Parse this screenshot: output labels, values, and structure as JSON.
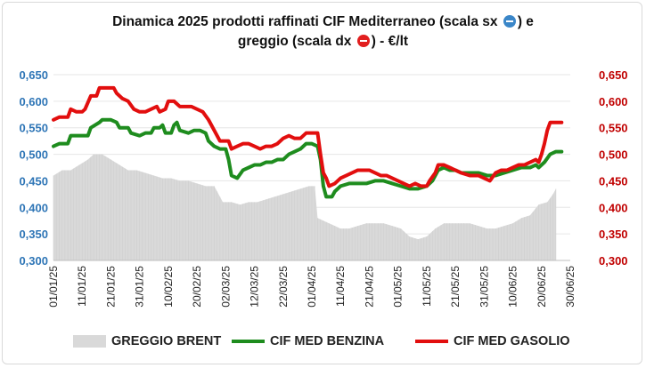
{
  "title": {
    "line1": "Dinamica 2025 prodotti raffinati CIF Mediterraneo (scala sx",
    "line1_end": ") e",
    "line2": "greggio (scala dx",
    "line2_end": ") - €/lt"
  },
  "colors": {
    "brent": "#d9d9d9",
    "benzina": "#1e8c1e",
    "gasolio": "#e20e0e",
    "left_axis": "#2e75b6",
    "right_axis": "#c00000"
  },
  "chart_data": {
    "type": "line",
    "x_tick_labels": [
      "01/01/25",
      "11/01/25",
      "21/01/25",
      "31/01/25",
      "10/02/25",
      "20/02/25",
      "02/03/25",
      "12/03/25",
      "22/03/25",
      "01/04/25",
      "11/04/25",
      "21/04/25",
      "01/05/25",
      "11/05/25",
      "21/05/25",
      "31/05/25",
      "10/06/25",
      "20/06/25",
      "30/06/25"
    ],
    "y_left_ticks": [
      "0,300",
      "0,350",
      "0,400",
      "0,450",
      "0,500",
      "0,550",
      "0,600",
      "0,650"
    ],
    "y_right_ticks": [
      "0,300",
      "0,350",
      "0,400",
      "0,450",
      "0,500",
      "0,550",
      "0,600",
      "0,650"
    ],
    "ylim_left": [
      0.3,
      0.65
    ],
    "ylim_right": [
      0.3,
      0.65
    ],
    "x_day_range": [
      0,
      180
    ],
    "series": [
      {
        "name": "GREGGIO BRENT",
        "kind": "area",
        "axis": "right",
        "points": [
          [
            0,
            0.46
          ],
          [
            3,
            0.47
          ],
          [
            6,
            0.47
          ],
          [
            9,
            0.48
          ],
          [
            12,
            0.49
          ],
          [
            14,
            0.5
          ],
          [
            17,
            0.5
          ],
          [
            20,
            0.49
          ],
          [
            23,
            0.48
          ],
          [
            26,
            0.47
          ],
          [
            29,
            0.47
          ],
          [
            32,
            0.465
          ],
          [
            35,
            0.46
          ],
          [
            38,
            0.455
          ],
          [
            41,
            0.455
          ],
          [
            44,
            0.45
          ],
          [
            47,
            0.45
          ],
          [
            50,
            0.445
          ],
          [
            53,
            0.44
          ],
          [
            56,
            0.44
          ],
          [
            59,
            0.41
          ],
          [
            62,
            0.41
          ],
          [
            65,
            0.405
          ],
          [
            68,
            0.41
          ],
          [
            71,
            0.41
          ],
          [
            74,
            0.415
          ],
          [
            77,
            0.42
          ],
          [
            80,
            0.425
          ],
          [
            83,
            0.43
          ],
          [
            86,
            0.435
          ],
          [
            89,
            0.44
          ],
          [
            91,
            0.44
          ],
          [
            92,
            0.38
          ],
          [
            94,
            0.375
          ],
          [
            96,
            0.37
          ],
          [
            98,
            0.365
          ],
          [
            100,
            0.36
          ],
          [
            103,
            0.36
          ],
          [
            106,
            0.365
          ],
          [
            109,
            0.37
          ],
          [
            112,
            0.37
          ],
          [
            115,
            0.37
          ],
          [
            118,
            0.365
          ],
          [
            121,
            0.36
          ],
          [
            124,
            0.345
          ],
          [
            127,
            0.34
          ],
          [
            130,
            0.345
          ],
          [
            133,
            0.36
          ],
          [
            136,
            0.37
          ],
          [
            139,
            0.37
          ],
          [
            142,
            0.37
          ],
          [
            145,
            0.37
          ],
          [
            148,
            0.365
          ],
          [
            151,
            0.36
          ],
          [
            154,
            0.36
          ],
          [
            157,
            0.365
          ],
          [
            160,
            0.37
          ],
          [
            163,
            0.38
          ],
          [
            166,
            0.385
          ],
          [
            169,
            0.405
          ],
          [
            172,
            0.41
          ],
          [
            174,
            0.425
          ],
          [
            175,
            0.435
          ]
        ]
      },
      {
        "name": "CIF MED BENZINA",
        "kind": "line",
        "axis": "left",
        "points": [
          [
            0,
            0.515
          ],
          [
            2,
            0.52
          ],
          [
            5,
            0.52
          ],
          [
            6,
            0.535
          ],
          [
            9,
            0.535
          ],
          [
            12,
            0.535
          ],
          [
            13,
            0.55
          ],
          [
            16,
            0.56
          ],
          [
            17,
            0.565
          ],
          [
            20,
            0.565
          ],
          [
            22,
            0.56
          ],
          [
            23,
            0.55
          ],
          [
            26,
            0.55
          ],
          [
            27,
            0.54
          ],
          [
            30,
            0.535
          ],
          [
            32,
            0.54
          ],
          [
            34,
            0.54
          ],
          [
            35,
            0.55
          ],
          [
            37,
            0.55
          ],
          [
            38,
            0.555
          ],
          [
            39,
            0.54
          ],
          [
            41,
            0.54
          ],
          [
            42,
            0.555
          ],
          [
            43,
            0.56
          ],
          [
            44,
            0.545
          ],
          [
            47,
            0.54
          ],
          [
            49,
            0.545
          ],
          [
            51,
            0.545
          ],
          [
            53,
            0.54
          ],
          [
            54,
            0.525
          ],
          [
            56,
            0.515
          ],
          [
            58,
            0.51
          ],
          [
            60,
            0.51
          ],
          [
            61,
            0.49
          ],
          [
            62,
            0.46
          ],
          [
            64,
            0.455
          ],
          [
            66,
            0.47
          ],
          [
            68,
            0.475
          ],
          [
            70,
            0.48
          ],
          [
            72,
            0.48
          ],
          [
            74,
            0.485
          ],
          [
            76,
            0.485
          ],
          [
            78,
            0.49
          ],
          [
            80,
            0.49
          ],
          [
            82,
            0.5
          ],
          [
            84,
            0.505
          ],
          [
            86,
            0.51
          ],
          [
            88,
            0.52
          ],
          [
            90,
            0.52
          ],
          [
            92,
            0.515
          ],
          [
            93,
            0.49
          ],
          [
            94,
            0.44
          ],
          [
            95,
            0.42
          ],
          [
            97,
            0.42
          ],
          [
            98,
            0.43
          ],
          [
            100,
            0.44
          ],
          [
            103,
            0.445
          ],
          [
            106,
            0.445
          ],
          [
            109,
            0.445
          ],
          [
            112,
            0.45
          ],
          [
            115,
            0.45
          ],
          [
            118,
            0.445
          ],
          [
            121,
            0.44
          ],
          [
            124,
            0.435
          ],
          [
            127,
            0.435
          ],
          [
            130,
            0.44
          ],
          [
            132,
            0.45
          ],
          [
            134,
            0.47
          ],
          [
            136,
            0.475
          ],
          [
            138,
            0.47
          ],
          [
            140,
            0.47
          ],
          [
            142,
            0.465
          ],
          [
            145,
            0.465
          ],
          [
            148,
            0.465
          ],
          [
            151,
            0.46
          ],
          [
            154,
            0.46
          ],
          [
            157,
            0.465
          ],
          [
            160,
            0.47
          ],
          [
            163,
            0.475
          ],
          [
            166,
            0.475
          ],
          [
            168,
            0.48
          ],
          [
            169,
            0.475
          ],
          [
            171,
            0.485
          ],
          [
            173,
            0.5
          ],
          [
            175,
            0.505
          ],
          [
            177,
            0.505
          ]
        ]
      },
      {
        "name": "CIF MED GASOLIO",
        "kind": "line",
        "axis": "left",
        "points": [
          [
            0,
            0.565
          ],
          [
            2,
            0.57
          ],
          [
            5,
            0.57
          ],
          [
            6,
            0.585
          ],
          [
            8,
            0.58
          ],
          [
            10,
            0.58
          ],
          [
            11,
            0.585
          ],
          [
            13,
            0.61
          ],
          [
            15,
            0.61
          ],
          [
            16,
            0.625
          ],
          [
            18,
            0.625
          ],
          [
            21,
            0.625
          ],
          [
            22,
            0.615
          ],
          [
            24,
            0.605
          ],
          [
            26,
            0.6
          ],
          [
            28,
            0.585
          ],
          [
            30,
            0.58
          ],
          [
            32,
            0.58
          ],
          [
            34,
            0.585
          ],
          [
            36,
            0.59
          ],
          [
            37,
            0.58
          ],
          [
            39,
            0.585
          ],
          [
            40,
            0.6
          ],
          [
            42,
            0.6
          ],
          [
            44,
            0.59
          ],
          [
            46,
            0.59
          ],
          [
            48,
            0.59
          ],
          [
            50,
            0.585
          ],
          [
            52,
            0.58
          ],
          [
            54,
            0.565
          ],
          [
            56,
            0.545
          ],
          [
            58,
            0.525
          ],
          [
            60,
            0.525
          ],
          [
            61,
            0.525
          ],
          [
            62,
            0.51
          ],
          [
            64,
            0.515
          ],
          [
            66,
            0.52
          ],
          [
            68,
            0.52
          ],
          [
            70,
            0.515
          ],
          [
            72,
            0.51
          ],
          [
            74,
            0.515
          ],
          [
            76,
            0.515
          ],
          [
            78,
            0.52
          ],
          [
            80,
            0.53
          ],
          [
            82,
            0.535
          ],
          [
            84,
            0.53
          ],
          [
            86,
            0.53
          ],
          [
            88,
            0.54
          ],
          [
            90,
            0.54
          ],
          [
            92,
            0.54
          ],
          [
            93,
            0.5
          ],
          [
            94,
            0.465
          ],
          [
            95,
            0.455
          ],
          [
            96,
            0.44
          ],
          [
            98,
            0.445
          ],
          [
            100,
            0.455
          ],
          [
            102,
            0.46
          ],
          [
            104,
            0.465
          ],
          [
            106,
            0.47
          ],
          [
            108,
            0.47
          ],
          [
            110,
            0.47
          ],
          [
            112,
            0.465
          ],
          [
            114,
            0.46
          ],
          [
            116,
            0.46
          ],
          [
            118,
            0.455
          ],
          [
            120,
            0.45
          ],
          [
            122,
            0.445
          ],
          [
            124,
            0.44
          ],
          [
            126,
            0.445
          ],
          [
            128,
            0.44
          ],
          [
            130,
            0.44
          ],
          [
            131,
            0.45
          ],
          [
            133,
            0.465
          ],
          [
            134,
            0.48
          ],
          [
            136,
            0.48
          ],
          [
            138,
            0.475
          ],
          [
            140,
            0.47
          ],
          [
            142,
            0.465
          ],
          [
            145,
            0.46
          ],
          [
            148,
            0.46
          ],
          [
            150,
            0.455
          ],
          [
            152,
            0.45
          ],
          [
            154,
            0.465
          ],
          [
            156,
            0.47
          ],
          [
            158,
            0.47
          ],
          [
            160,
            0.475
          ],
          [
            162,
            0.48
          ],
          [
            164,
            0.48
          ],
          [
            166,
            0.485
          ],
          [
            168,
            0.49
          ],
          [
            169,
            0.485
          ],
          [
            170,
            0.5
          ],
          [
            171,
            0.52
          ],
          [
            172,
            0.545
          ],
          [
            173,
            0.56
          ],
          [
            175,
            0.56
          ],
          [
            177,
            0.56
          ]
        ]
      }
    ]
  },
  "legend": [
    {
      "label": "GREGGIO BRENT",
      "kind": "area"
    },
    {
      "label": "CIF MED BENZINA",
      "kind": "line"
    },
    {
      "label": "CIF MED GASOLIO",
      "kind": "line"
    }
  ]
}
